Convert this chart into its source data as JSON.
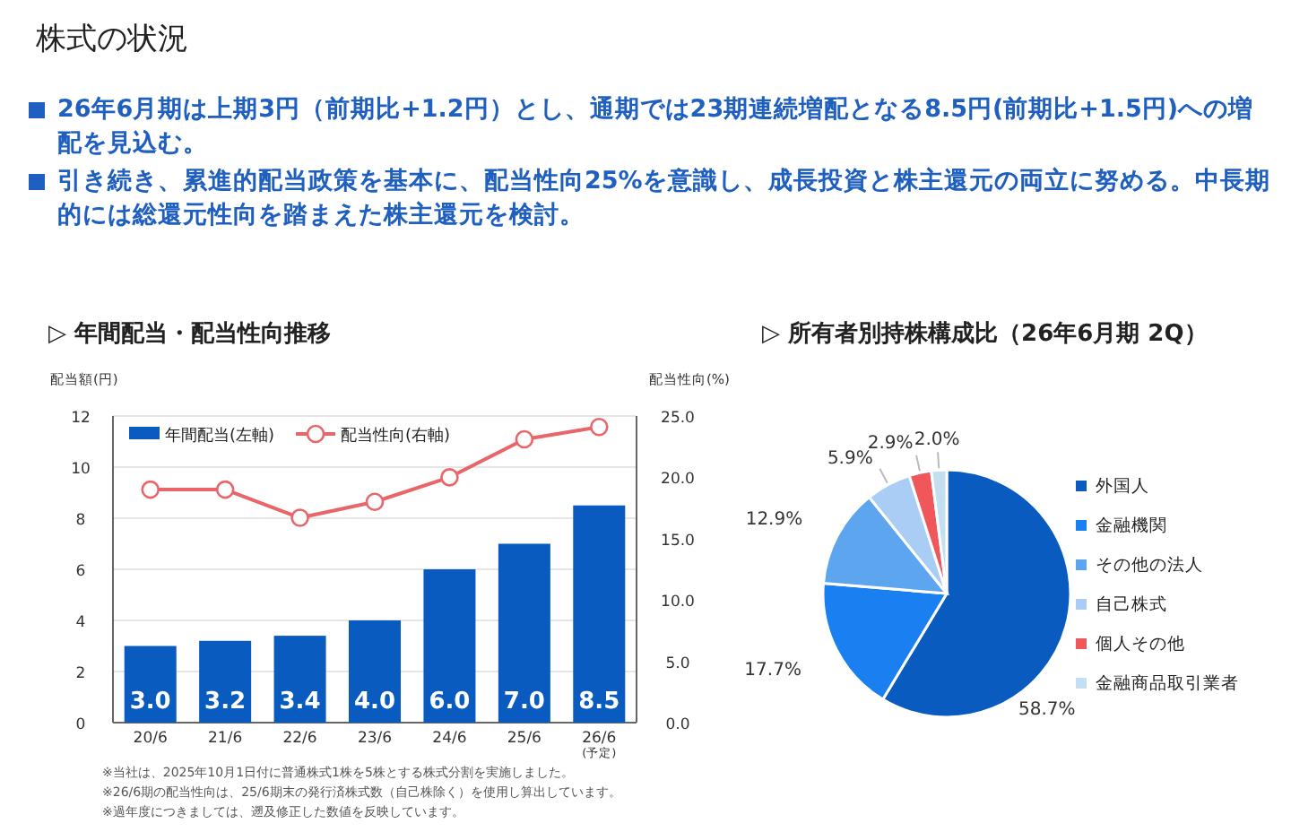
{
  "chart_data": [
    {
      "type": "other",
      "title": "株式の状況",
      "annotations": [
        "26年6月期は上期3円（前期比+1.2円）とし、通期では23期連続増配となる8.5円(前期比+1.5円)への増配を見込む。",
        "引き続き、累進的配当政策を基本に、配当性向25%を意識し、成長投資と株主還元の両立に努める。中長期的には総還元性向を踏まえた株主還元を検討。"
      ]
    },
    {
      "type": "bar",
      "title": "▷ 年間配当・配当性向推移",
      "ylabel": "配当額(円)",
      "y2label": "配当性向(%)",
      "categories": [
        "20/6",
        "21/6",
        "22/6",
        "23/6",
        "24/6",
        "25/6",
        "26/6\n(予定)"
      ],
      "series": [
        {
          "name": "年間配当(左軸)",
          "type": "bar",
          "color": "#0a5bc0",
          "values": [
            3.0,
            3.2,
            3.4,
            4.0,
            6.0,
            7.0,
            8.5
          ],
          "value_labels": [
            "3.0",
            "3.2",
            "3.4",
            "4.0",
            "6.0",
            "7.0",
            "8.5"
          ]
        },
        {
          "name": "配当性向(右軸)",
          "type": "line",
          "axis": "y2",
          "color": "#e8666a",
          "marker": "circle",
          "values": [
            19.0,
            19.0,
            16.7,
            18.0,
            20.0,
            23.1,
            24.1
          ]
        }
      ],
      "ylim": [
        0,
        12
      ],
      "yticks": [
        0,
        2,
        4,
        6,
        8,
        10,
        12
      ],
      "y2lim": [
        0,
        25
      ],
      "y2ticks": [
        {
          "value": 0,
          "label": "0.0"
        },
        {
          "value": 5,
          "label": "5.0"
        },
        {
          "value": 10,
          "label": "10.0"
        },
        {
          "value": 15,
          "label": "15.0"
        },
        {
          "value": 20,
          "label": "20.0"
        },
        {
          "value": 25,
          "label": "25.0"
        }
      ],
      "grid": "y",
      "legend": "top",
      "annotations": [
        "※当社は、2025年10月1日付に普通株式1株を5株とする株式分割を実施しました。",
        "※26/6期の配当性向は、25/6期末の発行済株式数（自己株除く）を使用し算出しています。",
        "※過年度につきましては、遡及修正した数値を反映しています。"
      ]
    },
    {
      "type": "pie",
      "title": "▷ 所有者別持株構成比（26年6月期 2Q）",
      "categories": [
        "外国人",
        "金融機関",
        "その他の法人",
        "自己株式",
        "個人その他",
        "金融商品取引業者"
      ],
      "values": [
        58.7,
        17.7,
        12.9,
        5.9,
        2.9,
        2.0
      ],
      "value_labels": [
        "58.7%",
        "17.7%",
        "12.9%",
        "5.9%",
        "2.9%",
        "2.0%"
      ],
      "colors": [
        "#0a5bc0",
        "#1a7ff0",
        "#5ea5ef",
        "#a9cdf5",
        "#f0575a",
        "#c4e0f0"
      ],
      "legend": "right"
    }
  ]
}
